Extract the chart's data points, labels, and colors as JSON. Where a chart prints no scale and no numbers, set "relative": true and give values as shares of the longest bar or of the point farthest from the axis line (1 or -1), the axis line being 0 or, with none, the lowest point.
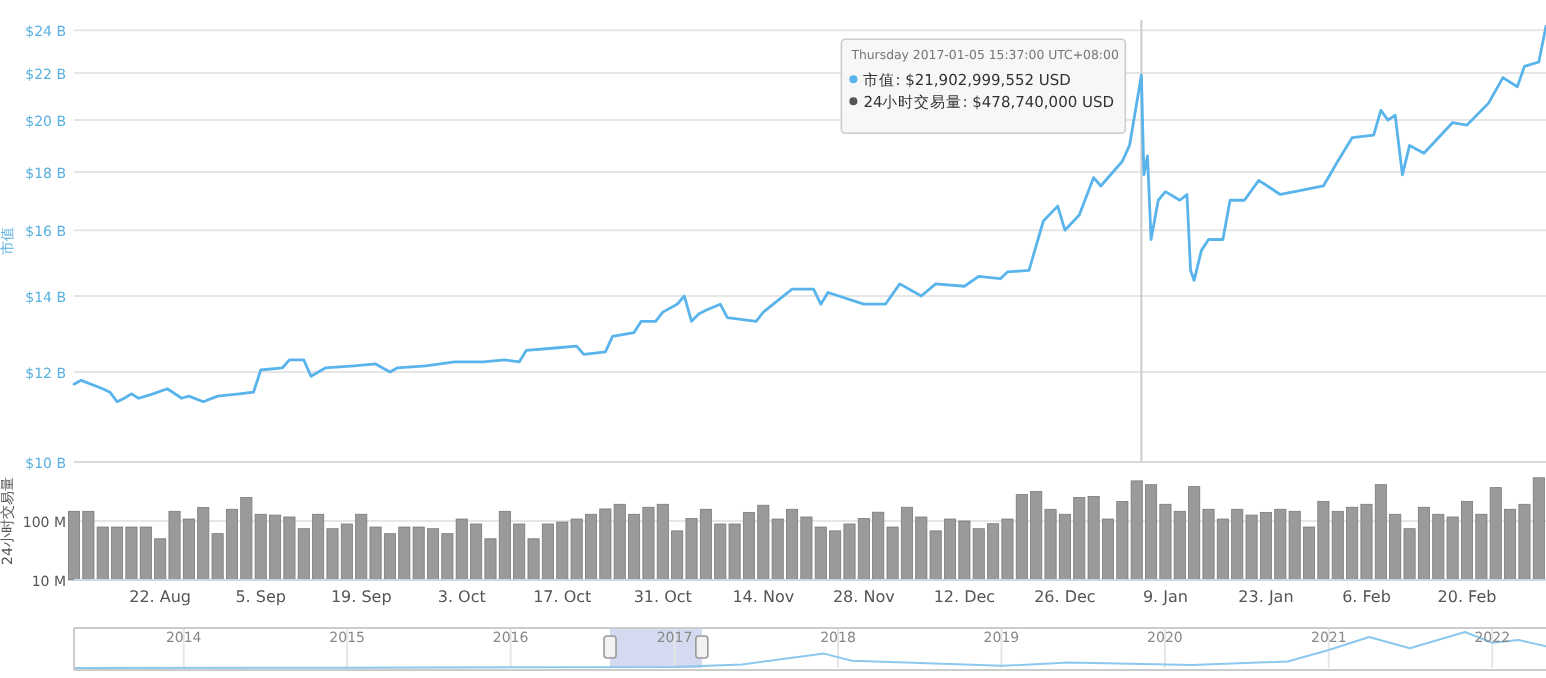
{
  "chart_data": [
    {
      "type": "line",
      "ylabel": "市值",
      "log": true,
      "grid": "y",
      "tick_labels": "y",
      "xlim": [
        "2016-08-10",
        "2017-03-03"
      ],
      "ylim": [
        10,
        24.5
      ],
      "yticks": [
        {
          "value": 10,
          "label": "$10 B"
        },
        {
          "value": 12,
          "label": "$12 B"
        },
        {
          "value": 14,
          "label": "$14 B"
        },
        {
          "value": 16,
          "label": "$16 B"
        },
        {
          "value": 18,
          "label": "$18 B"
        },
        {
          "value": 20,
          "label": "$20 B"
        },
        {
          "value": 22,
          "label": "$22 B"
        },
        {
          "value": 24,
          "label": "$24 B"
        }
      ],
      "x": [
        "2016-08-10",
        "2016-08-11",
        "2016-08-14",
        "2016-08-15",
        "2016-08-16",
        "2016-08-17",
        "2016-08-18",
        "2016-08-19",
        "2016-08-21",
        "2016-08-23",
        "2016-08-25",
        "2016-08-26",
        "2016-08-28",
        "2016-08-30",
        "2016-09-02",
        "2016-09-04",
        "2016-09-05",
        "2016-09-08",
        "2016-09-09",
        "2016-09-11",
        "2016-09-12",
        "2016-09-14",
        "2016-09-18",
        "2016-09-21",
        "2016-09-23",
        "2016-09-24",
        "2016-09-28",
        "2016-10-02",
        "2016-10-06",
        "2016-10-09",
        "2016-10-11",
        "2016-10-12",
        "2016-10-16",
        "2016-10-19",
        "2016-10-20",
        "2016-10-23",
        "2016-10-24",
        "2016-10-27",
        "2016-10-28",
        "2016-10-30",
        "2016-10-31",
        "2016-11-02",
        "2016-11-03",
        "2016-11-04",
        "2016-11-05",
        "2016-11-06",
        "2016-11-08",
        "2016-11-09",
        "2016-11-13",
        "2016-11-14",
        "2016-11-18",
        "2016-11-21",
        "2016-11-22",
        "2016-11-23",
        "2016-11-28",
        "2016-12-01",
        "2016-12-03",
        "2016-12-06",
        "2016-12-08",
        "2016-12-12",
        "2016-12-14",
        "2016-12-17",
        "2016-12-18",
        "2016-12-21",
        "2016-12-23",
        "2016-12-25",
        "2016-12-26",
        "2016-12-28",
        "2016-12-30",
        "2016-12-31",
        "2017-01-03",
        "2017-01-04",
        "2017-01-05T15:37",
        "2017-01-06",
        "2017-01-06T12:00",
        "2017-01-07",
        "2017-01-08",
        "2017-01-09",
        "2017-01-11",
        "2017-01-12",
        "2017-01-12T12:00",
        "2017-01-13",
        "2017-01-14",
        "2017-01-15",
        "2017-01-17",
        "2017-01-18",
        "2017-01-20",
        "2017-01-22",
        "2017-01-25",
        "2017-01-27",
        "2017-01-31",
        "2017-02-02",
        "2017-02-04",
        "2017-02-07",
        "2017-02-08",
        "2017-02-09",
        "2017-02-10",
        "2017-02-11",
        "2017-02-12",
        "2017-02-14",
        "2017-02-18",
        "2017-02-20",
        "2017-02-23",
        "2017-02-25",
        "2017-02-27",
        "2017-02-28",
        "2017-03-02",
        "2017-03-03"
      ],
      "series": [
        {
          "color": "#5ab4ec",
          "values": [
            11.71,
            11.8,
            11.6,
            11.52,
            11.3,
            11.38,
            11.48,
            11.38,
            11.48,
            11.6,
            11.38,
            11.43,
            11.3,
            11.43,
            11.48,
            11.52,
            12.05,
            12.1,
            12.3,
            12.3,
            11.9,
            12.1,
            12.15,
            12.2,
            12.0,
            12.1,
            12.15,
            12.25,
            12.25,
            12.3,
            12.25,
            12.54,
            12.6,
            12.65,
            12.44,
            12.5,
            12.9,
            13.0,
            13.3,
            13.3,
            13.55,
            13.77,
            14.0,
            13.3,
            13.5,
            13.6,
            13.77,
            13.4,
            13.3,
            13.55,
            14.2,
            14.2,
            13.77,
            14.1,
            13.77,
            13.77,
            14.35,
            14.0,
            14.35,
            14.28,
            14.57,
            14.5,
            14.7,
            14.75,
            16.3,
            16.8,
            16.0,
            16.5,
            17.8,
            17.5,
            18.4,
            19.0,
            21.903,
            17.9,
            18.6,
            15.7,
            17.0,
            17.3,
            17.0,
            17.2,
            14.75,
            14.45,
            15.35,
            15.7,
            15.7,
            17.0,
            17.0,
            17.7,
            17.2,
            17.3,
            17.5,
            18.4,
            19.3,
            19.4,
            20.4,
            20.0,
            20.2,
            17.9,
            19.0,
            18.7,
            19.9,
            19.8,
            20.7,
            21.8,
            21.4,
            22.3,
            22.5,
            24.2
          ]
        }
      ],
      "ref_lines": [
        {
          "axis": "x",
          "value": "2017-01-05T15:37",
          "color": "#cccccc"
        }
      ],
      "annotations": [
        {
          "text": "Thursday 2017-01-05 15:37:00 UTC+08:00",
          "x": "2017-01-05T15:37",
          "y": 21.903
        },
        "市值: $21,902,999,552 USD",
        "24小时交易量: $478,740,000 USD"
      ]
    },
    {
      "type": "bar",
      "ylabel": "24小时交易量",
      "log": true,
      "grid": "y",
      "color": "#9a9a9a",
      "xlim": [
        "2016-08-10",
        "2017-03-03"
      ],
      "ylim": [
        10,
        1000
      ],
      "yticks": [
        {
          "value": 10,
          "label": "10 M"
        },
        {
          "value": 100,
          "label": "100 M"
        }
      ],
      "xticks": [
        {
          "value": "2016-08-22",
          "label": "22. Aug"
        },
        {
          "value": "2016-09-05",
          "label": "5. Sep"
        },
        {
          "value": "2016-09-19",
          "label": "19. Sep"
        },
        {
          "value": "2016-10-03",
          "label": "3. Oct"
        },
        {
          "value": "2016-10-17",
          "label": "17. Oct"
        },
        {
          "value": "2016-10-31",
          "label": "31. Oct"
        },
        {
          "value": "2016-11-14",
          "label": "14. Nov"
        },
        {
          "value": "2016-11-28",
          "label": "28. Nov"
        },
        {
          "value": "2016-12-12",
          "label": "12. Dec"
        },
        {
          "value": "2016-12-26",
          "label": "26. Dec"
        },
        {
          "value": "2017-01-09",
          "label": "9. Jan"
        },
        {
          "value": "2017-01-23",
          "label": "23. Jan"
        },
        {
          "value": "2017-02-06",
          "label": "6. Feb"
        },
        {
          "value": "2017-02-20",
          "label": "20. Feb"
        }
      ],
      "x": [
        "2016-08-10",
        "2016-08-12",
        "2016-08-14",
        "2016-08-16",
        "2016-08-18",
        "2016-08-20",
        "2016-08-22",
        "2016-08-24",
        "2016-08-26",
        "2016-08-28",
        "2016-08-30",
        "2016-09-01",
        "2016-09-03",
        "2016-09-05",
        "2016-09-07",
        "2016-09-09",
        "2016-09-11",
        "2016-09-13",
        "2016-09-15",
        "2016-09-17",
        "2016-09-19",
        "2016-09-21",
        "2016-09-23",
        "2016-09-25",
        "2016-09-27",
        "2016-09-29",
        "2016-10-01",
        "2016-10-03",
        "2016-10-05",
        "2016-10-07",
        "2016-10-09",
        "2016-10-11",
        "2016-10-13",
        "2016-10-15",
        "2016-10-17",
        "2016-10-19",
        "2016-10-21",
        "2016-10-23",
        "2016-10-25",
        "2016-10-27",
        "2016-10-29",
        "2016-10-31",
        "2016-11-02",
        "2016-11-04",
        "2016-11-06",
        "2016-11-08",
        "2016-11-10",
        "2016-11-12",
        "2016-11-14",
        "2016-11-16",
        "2016-11-18",
        "2016-11-20",
        "2016-11-22",
        "2016-11-24",
        "2016-11-26",
        "2016-11-28",
        "2016-11-30",
        "2016-12-02",
        "2016-12-04",
        "2016-12-06",
        "2016-12-08",
        "2016-12-10",
        "2016-12-12",
        "2016-12-14",
        "2016-12-16",
        "2016-12-18",
        "2016-12-20",
        "2016-12-22",
        "2016-12-24",
        "2016-12-26",
        "2016-12-28",
        "2016-12-30",
        "2017-01-01",
        "2017-01-03",
        "2017-01-05",
        "2017-01-07",
        "2017-01-09",
        "2017-01-11",
        "2017-01-13",
        "2017-01-15",
        "2017-01-17",
        "2017-01-19",
        "2017-01-21",
        "2017-01-23",
        "2017-01-25",
        "2017-01-27",
        "2017-01-29",
        "2017-01-31",
        "2017-02-02",
        "2017-02-04",
        "2017-02-06",
        "2017-02-08",
        "2017-02-10",
        "2017-02-12",
        "2017-02-14",
        "2017-02-16",
        "2017-02-18",
        "2017-02-20",
        "2017-02-22",
        "2017-02-24",
        "2017-02-26",
        "2017-02-28",
        "2017-03-02"
      ],
      "values": [
        146,
        146,
        79,
        79,
        79,
        79,
        50,
        146,
        108,
        170,
        61,
        158,
        251,
        130,
        126,
        117,
        74,
        130,
        74,
        89,
        130,
        79,
        61,
        79,
        79,
        74,
        61,
        108,
        89,
        50,
        146,
        89,
        50,
        89,
        96,
        108,
        130,
        160,
        192,
        130,
        171,
        192,
        68,
        110,
        158,
        89,
        89,
        140,
        185,
        108,
        158,
        117,
        79,
        68,
        89,
        110,
        141,
        79,
        171,
        117,
        68,
        108,
        100,
        74,
        90,
        108,
        281,
        316,
        158,
        130,
        251,
        261,
        108,
        215,
        478.74,
        413,
        192,
        146,
        383,
        158,
        108,
        158,
        126,
        140,
        158,
        146,
        79,
        215,
        146,
        171,
        192,
        413,
        130,
        74,
        171,
        130,
        117,
        215,
        130,
        368,
        158,
        192,
        540
      ]
    },
    {
      "type": "line",
      "relative": true,
      "tick_labels": "x",
      "grid": "x",
      "xlim": [
        "2013-05",
        "2022-05"
      ],
      "xticks": [
        {
          "value": "2014",
          "label": "2014"
        },
        {
          "value": "2015",
          "label": "2015"
        },
        {
          "value": "2016",
          "label": "2016"
        },
        {
          "value": "2017",
          "label": "2017"
        },
        {
          "value": "2018",
          "label": "2018"
        },
        {
          "value": "2019",
          "label": "2019"
        },
        {
          "value": "2020",
          "label": "2020"
        },
        {
          "value": "2021",
          "label": "2021"
        },
        {
          "value": "2022",
          "label": "2022"
        }
      ],
      "x": [
        "2013-05",
        "2015-01",
        "2017-01",
        "2017-06",
        "2017-12",
        "2018-02",
        "2018-06",
        "2019-01",
        "2019-06",
        "2020-03",
        "2020-10",
        "2021-01",
        "2021-04",
        "2021-07",
        "2021-11",
        "2022-01",
        "2022-03",
        "2022-05"
      ],
      "series": [
        {
          "color": "#8cc8ee",
          "values": [
            0,
            0.01,
            0.03,
            0.1,
            0.4,
            0.2,
            0.15,
            0.06,
            0.15,
            0.08,
            0.18,
            0.5,
            0.86,
            0.55,
            1,
            0.7,
            0.78,
            0.6
          ]
        }
      ],
      "bands": [
        {
          "axis": "x",
          "from": "2016-08-10",
          "to": "2017-03-03",
          "color": "#d4daef"
        }
      ]
    }
  ]
}
